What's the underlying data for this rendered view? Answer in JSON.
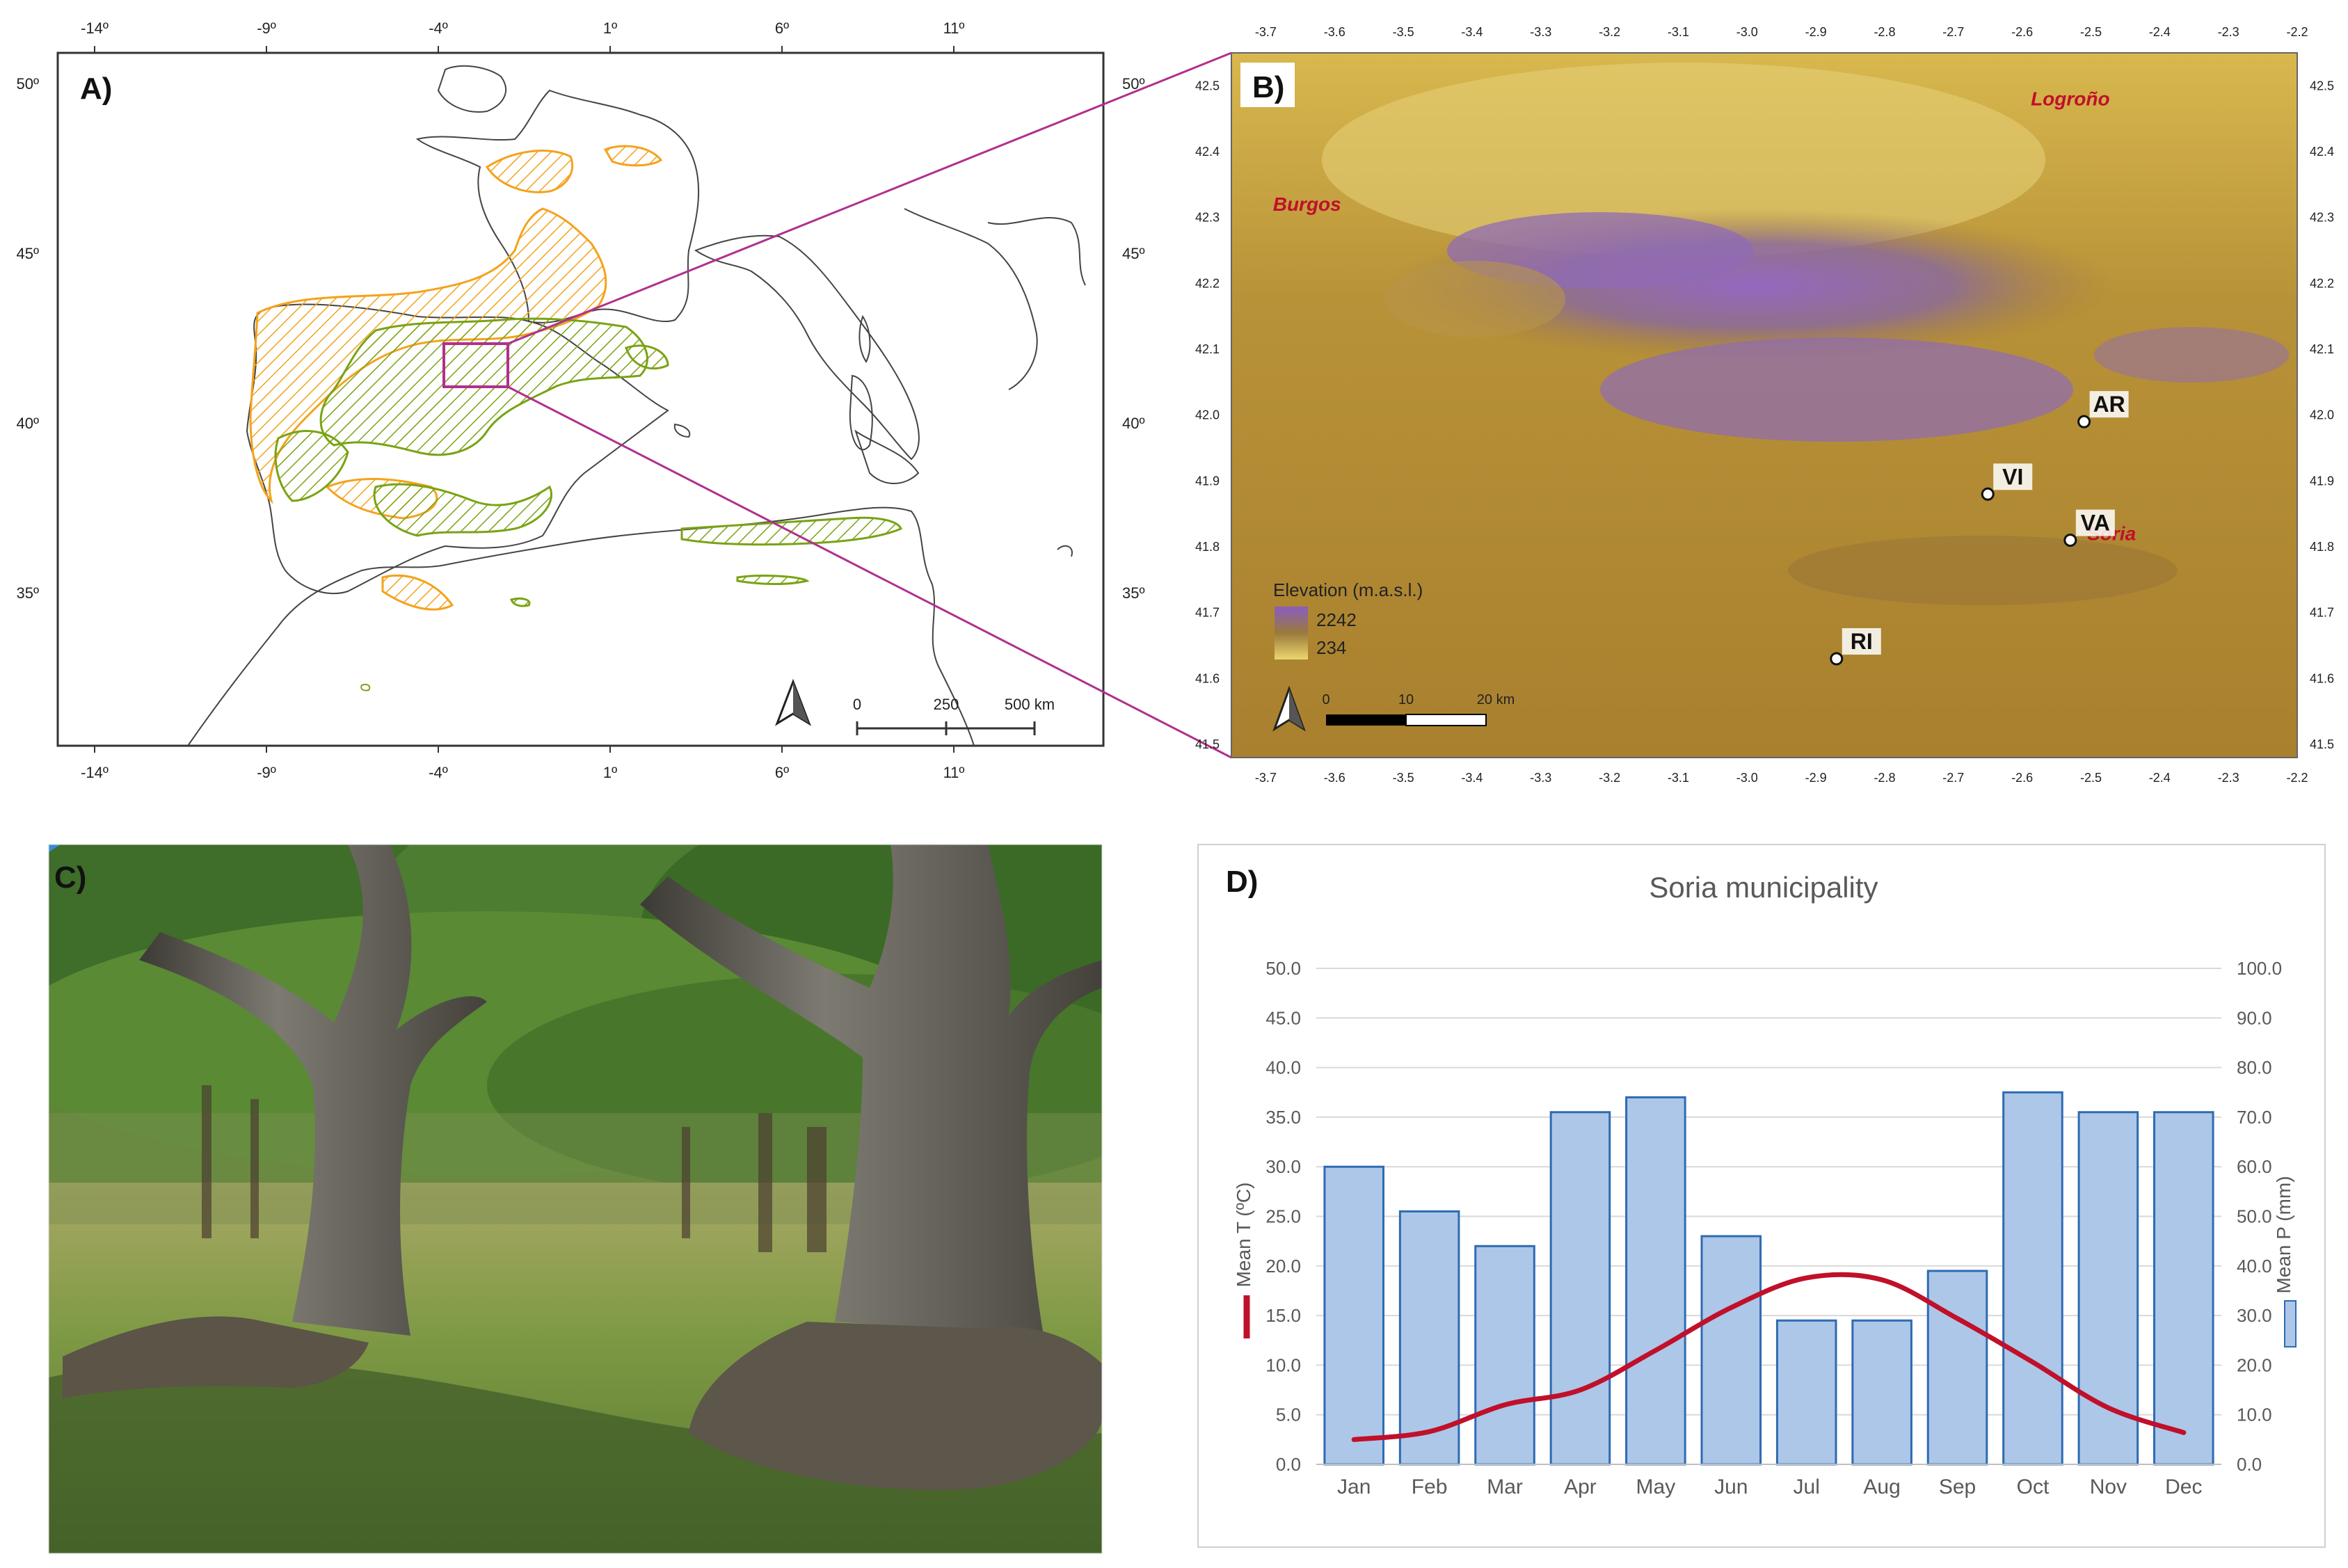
{
  "panels": {
    "a": "A)",
    "b": "B)",
    "c": "C)",
    "d": "D)"
  },
  "map_a": {
    "lon_ticks": [
      "-14º",
      "-9º",
      "-4º",
      "1º",
      "6º",
      "11º"
    ],
    "lat_ticks": [
      "50º",
      "45º",
      "40º",
      "35º"
    ],
    "scale_labels": [
      "0",
      "250",
      "500 km"
    ],
    "colors": {
      "orange": "#f4a21c",
      "green": "#79a314",
      "box": "#b0308e"
    }
  },
  "map_b": {
    "lon_ticks": [
      "-3.7",
      "-3.6",
      "-3.5",
      "-3.4",
      "-3.3",
      "-3.2",
      "-3.1",
      "-3.0",
      "-2.9",
      "-2.8",
      "-2.7",
      "-2.6",
      "-2.5",
      "-2.4",
      "-2.3",
      "-2.2"
    ],
    "lat_ticks": [
      "42.5",
      "42.4",
      "42.3",
      "42.2",
      "42.1",
      "42.0",
      "41.9",
      "41.8",
      "41.7",
      "41.6",
      "41.5"
    ],
    "cities": [
      {
        "label": "Logroño",
        "lon": -2.53,
        "lat": 42.47
      },
      {
        "label": "Burgos",
        "lon": -3.64,
        "lat": 42.31
      },
      {
        "label": "Soria",
        "lon": -2.47,
        "lat": 41.81
      }
    ],
    "sites": [
      {
        "label": "AR",
        "lon": -2.51,
        "lat": 41.99
      },
      {
        "label": "VI",
        "lon": -2.65,
        "lat": 41.88
      },
      {
        "label": "VA",
        "lon": -2.53,
        "lat": 41.81
      },
      {
        "label": "RI",
        "lon": -2.87,
        "lat": 41.63
      }
    ],
    "legend": {
      "title": "Elevation (m.a.s.l.)",
      "max": "2242",
      "min": "234"
    },
    "scale_labels": [
      "0",
      "10",
      "20 km"
    ]
  },
  "chart_data": {
    "type": "bar",
    "title": "Soria municipality",
    "categories": [
      "Jan",
      "Feb",
      "Mar",
      "Apr",
      "May",
      "Jun",
      "Jul",
      "Aug",
      "Sep",
      "Oct",
      "Nov",
      "Dec"
    ],
    "series": [
      {
        "name": "Mean P (mm)",
        "type": "bar",
        "axis": "right",
        "color": "#adc7e8",
        "values": [
          60,
          51,
          44,
          71,
          74,
          46,
          29,
          29,
          39,
          75,
          71,
          71
        ]
      },
      {
        "name": "Mean T (ºC)",
        "type": "line",
        "axis": "left",
        "color": "#c0102a",
        "values": [
          2.5,
          3.3,
          6.0,
          7.5,
          11.5,
          15.8,
          18.8,
          18.6,
          14.7,
          10.3,
          5.7,
          3.2
        ]
      }
    ],
    "ylabel_left": "Mean T (ºC)",
    "ylabel_right": "Mean P (mm)",
    "ylim_left": [
      0,
      50
    ],
    "ylim_right": [
      0,
      100
    ],
    "left_ticks": [
      "0.0",
      "5.0",
      "10.0",
      "15.0",
      "20.0",
      "25.0",
      "30.0",
      "35.0",
      "40.0",
      "45.0",
      "50.0"
    ],
    "right_ticks": [
      "0.0",
      "10.0",
      "20.0",
      "30.0",
      "40.0",
      "50.0",
      "60.0",
      "70.0",
      "80.0",
      "90.0",
      "100.0"
    ],
    "grid": true
  }
}
